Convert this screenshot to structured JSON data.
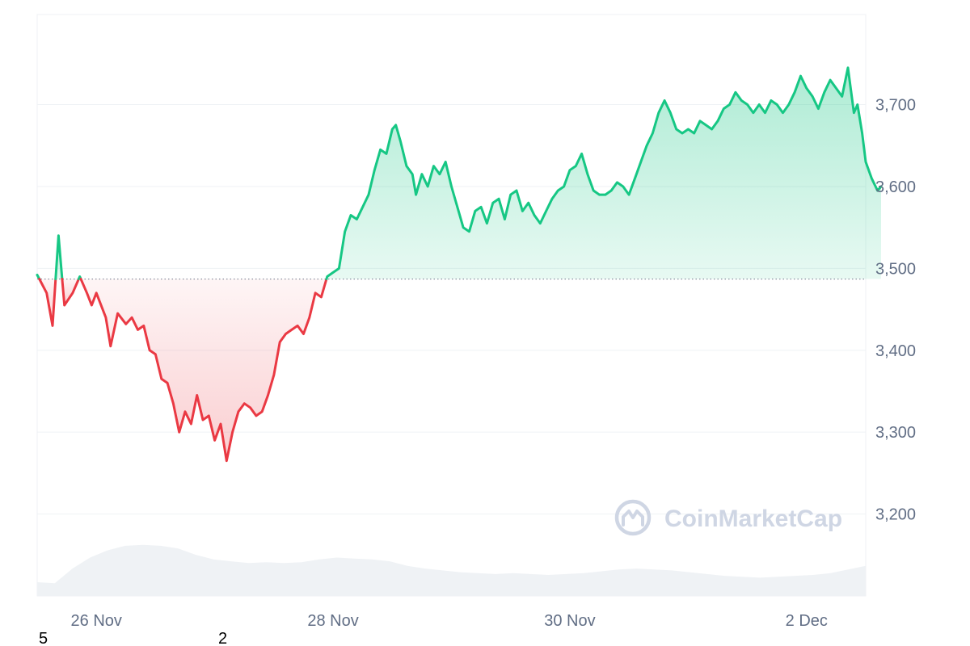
{
  "chart_data": {
    "type": "area",
    "title": "",
    "xlabel": "",
    "ylabel": "",
    "baseline": 3487,
    "ylim": [
      3100,
      3810
    ],
    "y_ticks": [
      "3,200",
      "3,300",
      "3,400",
      "3,500",
      "3,600",
      "3,700"
    ],
    "y_tick_values": [
      3200,
      3300,
      3400,
      3500,
      3600,
      3700
    ],
    "x_ticks": [
      "26 Nov",
      "28 Nov",
      "30 Nov",
      "2 Dec"
    ],
    "x_tick_values": [
      0.5,
      2.5,
      4.5,
      6.5
    ],
    "x_range": [
      0,
      7
    ],
    "grid": true,
    "colors": {
      "up_line": "#16c784",
      "up_fill_top": "#16c784",
      "down_line": "#ea3943",
      "down_fill_bottom": "#ea3943",
      "baseline": "#7d8596",
      "grid": "#eff2f5",
      "volume": "#eff2f5",
      "tick_text": "#616e85",
      "watermark": "#cfd6e4"
    },
    "price_series": {
      "name": "",
      "points": [
        [
          0.0,
          3492
        ],
        [
          0.08,
          3470
        ],
        [
          0.13,
          3430
        ],
        [
          0.18,
          3540
        ],
        [
          0.23,
          3455
        ],
        [
          0.3,
          3470
        ],
        [
          0.36,
          3490
        ],
        [
          0.42,
          3470
        ],
        [
          0.46,
          3455
        ],
        [
          0.5,
          3470
        ],
        [
          0.58,
          3440
        ],
        [
          0.62,
          3405
        ],
        [
          0.68,
          3445
        ],
        [
          0.75,
          3432
        ],
        [
          0.8,
          3440
        ],
        [
          0.85,
          3425
        ],
        [
          0.9,
          3430
        ],
        [
          0.95,
          3400
        ],
        [
          1.0,
          3395
        ],
        [
          1.05,
          3365
        ],
        [
          1.1,
          3360
        ],
        [
          1.15,
          3335
        ],
        [
          1.2,
          3300
        ],
        [
          1.25,
          3325
        ],
        [
          1.3,
          3310
        ],
        [
          1.35,
          3345
        ],
        [
          1.4,
          3315
        ],
        [
          1.45,
          3320
        ],
        [
          1.5,
          3290
        ],
        [
          1.55,
          3310
        ],
        [
          1.6,
          3265
        ],
        [
          1.65,
          3300
        ],
        [
          1.7,
          3325
        ],
        [
          1.75,
          3335
        ],
        [
          1.8,
          3330
        ],
        [
          1.85,
          3320
        ],
        [
          1.9,
          3325
        ],
        [
          1.95,
          3345
        ],
        [
          2.0,
          3370
        ],
        [
          2.05,
          3410
        ],
        [
          2.1,
          3420
        ],
        [
          2.15,
          3425
        ],
        [
          2.2,
          3430
        ],
        [
          2.25,
          3420
        ],
        [
          2.3,
          3440
        ],
        [
          2.35,
          3470
        ],
        [
          2.4,
          3465
        ],
        [
          2.45,
          3490
        ],
        [
          2.5,
          3495
        ],
        [
          2.55,
          3500
        ],
        [
          2.6,
          3545
        ],
        [
          2.65,
          3565
        ],
        [
          2.7,
          3560
        ],
        [
          2.75,
          3575
        ],
        [
          2.8,
          3590
        ],
        [
          2.85,
          3620
        ],
        [
          2.9,
          3645
        ],
        [
          2.95,
          3640
        ],
        [
          3.0,
          3670
        ],
        [
          3.03,
          3675
        ],
        [
          3.07,
          3655
        ],
        [
          3.12,
          3625
        ],
        [
          3.17,
          3615
        ],
        [
          3.2,
          3590
        ],
        [
          3.25,
          3615
        ],
        [
          3.3,
          3600
        ],
        [
          3.35,
          3625
        ],
        [
          3.4,
          3615
        ],
        [
          3.45,
          3630
        ],
        [
          3.5,
          3600
        ],
        [
          3.55,
          3575
        ],
        [
          3.6,
          3550
        ],
        [
          3.65,
          3545
        ],
        [
          3.7,
          3570
        ],
        [
          3.75,
          3575
        ],
        [
          3.8,
          3555
        ],
        [
          3.85,
          3580
        ],
        [
          3.9,
          3585
        ],
        [
          3.95,
          3560
        ],
        [
          4.0,
          3590
        ],
        [
          4.05,
          3595
        ],
        [
          4.1,
          3570
        ],
        [
          4.15,
          3580
        ],
        [
          4.2,
          3565
        ],
        [
          4.25,
          3555
        ],
        [
          4.3,
          3570
        ],
        [
          4.35,
          3585
        ],
        [
          4.4,
          3595
        ],
        [
          4.45,
          3600
        ],
        [
          4.5,
          3620
        ],
        [
          4.55,
          3625
        ],
        [
          4.6,
          3640
        ],
        [
          4.65,
          3615
        ],
        [
          4.7,
          3595
        ],
        [
          4.75,
          3590
        ],
        [
          4.8,
          3590
        ],
        [
          4.85,
          3595
        ],
        [
          4.9,
          3605
        ],
        [
          4.95,
          3600
        ],
        [
          5.0,
          3590
        ],
        [
          5.05,
          3610
        ],
        [
          5.1,
          3630
        ],
        [
          5.15,
          3650
        ],
        [
          5.2,
          3665
        ],
        [
          5.25,
          3690
        ],
        [
          5.3,
          3705
        ],
        [
          5.35,
          3690
        ],
        [
          5.4,
          3670
        ],
        [
          5.45,
          3665
        ],
        [
          5.5,
          3670
        ],
        [
          5.55,
          3665
        ],
        [
          5.6,
          3680
        ],
        [
          5.65,
          3675
        ],
        [
          5.7,
          3670
        ],
        [
          5.75,
          3680
        ],
        [
          5.8,
          3695
        ],
        [
          5.85,
          3700
        ],
        [
          5.9,
          3715
        ],
        [
          5.95,
          3705
        ],
        [
          6.0,
          3700
        ],
        [
          6.05,
          3690
        ],
        [
          6.1,
          3700
        ],
        [
          6.15,
          3690
        ],
        [
          6.2,
          3705
        ],
        [
          6.25,
          3700
        ],
        [
          6.3,
          3690
        ],
        [
          6.35,
          3700
        ],
        [
          6.4,
          3715
        ],
        [
          6.45,
          3735
        ],
        [
          6.5,
          3720
        ],
        [
          6.55,
          3710
        ],
        [
          6.6,
          3695
        ],
        [
          6.65,
          3715
        ],
        [
          6.7,
          3730
        ],
        [
          6.75,
          3720
        ],
        [
          6.8,
          3710
        ],
        [
          6.85,
          3745
        ],
        [
          6.9,
          3690
        ],
        [
          6.93,
          3700
        ],
        [
          6.97,
          3665
        ],
        [
          7.0,
          3630
        ],
        [
          7.05,
          3610
        ],
        [
          7.1,
          3595
        ],
        [
          7.13,
          3600
        ]
      ]
    },
    "volume_series": {
      "name": "",
      "values": [
        0.15,
        0.14,
        0.3,
        0.42,
        0.5,
        0.55,
        0.56,
        0.55,
        0.52,
        0.45,
        0.4,
        0.38,
        0.36,
        0.37,
        0.36,
        0.37,
        0.4,
        0.42,
        0.41,
        0.4,
        0.38,
        0.33,
        0.3,
        0.28,
        0.26,
        0.25,
        0.24,
        0.25,
        0.24,
        0.23,
        0.24,
        0.25,
        0.27,
        0.29,
        0.3,
        0.29,
        0.28,
        0.26,
        0.24,
        0.22,
        0.21,
        0.2,
        0.21,
        0.22,
        0.23,
        0.25,
        0.29,
        0.33
      ]
    }
  },
  "watermark": {
    "brand": "CoinMarketCap"
  },
  "stray_labels": [
    "5",
    "2"
  ]
}
